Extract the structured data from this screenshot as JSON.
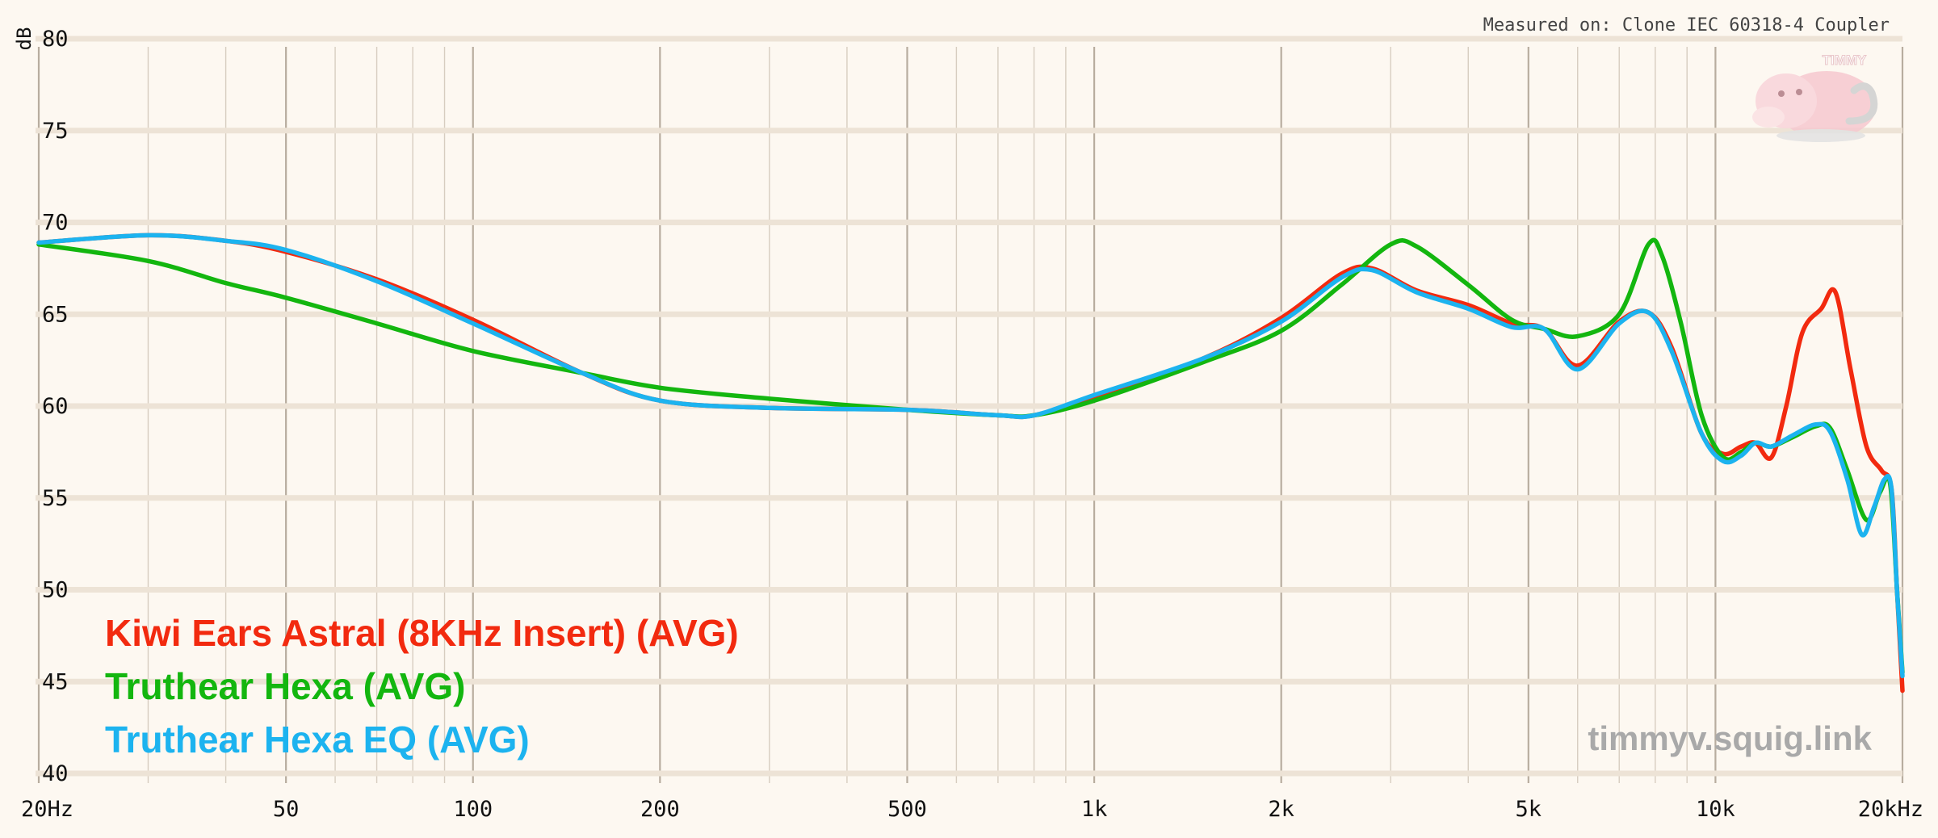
{
  "chart_data": {
    "type": "line",
    "title": "",
    "ylabel": "dB",
    "xlabel": "",
    "x_scale": "log",
    "xlim": [
      20,
      20000
    ],
    "ylim": [
      40,
      80
    ],
    "grid": true,
    "legend_position": "bottom-left",
    "y_ticks": [
      40,
      45,
      50,
      55,
      60,
      65,
      70,
      75,
      80
    ],
    "x_ticks": [
      {
        "value": 20,
        "label": "20Hz"
      },
      {
        "value": 50,
        "label": "50"
      },
      {
        "value": 100,
        "label": "100"
      },
      {
        "value": 200,
        "label": "200"
      },
      {
        "value": 500,
        "label": "500"
      },
      {
        "value": 1000,
        "label": "1k"
      },
      {
        "value": 2000,
        "label": "2k"
      },
      {
        "value": 5000,
        "label": "5k"
      },
      {
        "value": 10000,
        "label": "10k"
      },
      {
        "value": 20000,
        "label": "20kHz"
      }
    ],
    "series": [
      {
        "name": "Kiwi Ears Astral (8KHz Insert) (AVG)",
        "color": "#f22a0f",
        "points": [
          [
            20,
            68.9
          ],
          [
            30,
            69.3
          ],
          [
            40,
            69.0
          ],
          [
            50,
            68.4
          ],
          [
            70,
            66.9
          ],
          [
            100,
            64.7
          ],
          [
            150,
            61.8
          ],
          [
            200,
            60.3
          ],
          [
            300,
            59.9
          ],
          [
            500,
            59.8
          ],
          [
            700,
            59.5
          ],
          [
            800,
            59.5
          ],
          [
            1000,
            60.5
          ],
          [
            1500,
            62.6
          ],
          [
            2000,
            64.8
          ],
          [
            2500,
            67.2
          ],
          [
            2800,
            67.5
          ],
          [
            3300,
            66.3
          ],
          [
            4000,
            65.5
          ],
          [
            4700,
            64.5
          ],
          [
            5300,
            64.2
          ],
          [
            6000,
            62.2
          ],
          [
            7000,
            64.6
          ],
          [
            7800,
            65.1
          ],
          [
            8500,
            63.2
          ],
          [
            9500,
            58.5
          ],
          [
            10300,
            57.4
          ],
          [
            11000,
            57.8
          ],
          [
            11600,
            58.0
          ],
          [
            12300,
            57.2
          ],
          [
            13000,
            60.0
          ],
          [
            13800,
            64.0
          ],
          [
            14800,
            65.3
          ],
          [
            15600,
            66.2
          ],
          [
            16500,
            62.0
          ],
          [
            17500,
            57.8
          ],
          [
            18500,
            56.5
          ],
          [
            19200,
            55.5
          ],
          [
            19600,
            50.0
          ],
          [
            20000,
            44.5
          ]
        ]
      },
      {
        "name": "Truthear Hexa (AVG)",
        "color": "#13b60f",
        "points": [
          [
            20,
            68.8
          ],
          [
            30,
            67.9
          ],
          [
            40,
            66.7
          ],
          [
            50,
            65.9
          ],
          [
            70,
            64.5
          ],
          [
            100,
            63.0
          ],
          [
            150,
            61.8
          ],
          [
            200,
            61.0
          ],
          [
            300,
            60.4
          ],
          [
            500,
            59.8
          ],
          [
            700,
            59.5
          ],
          [
            800,
            59.5
          ],
          [
            1000,
            60.3
          ],
          [
            1500,
            62.4
          ],
          [
            2000,
            64.1
          ],
          [
            2500,
            66.6
          ],
          [
            3000,
            68.8
          ],
          [
            3300,
            68.7
          ],
          [
            4000,
            66.6
          ],
          [
            4700,
            64.7
          ],
          [
            5300,
            64.2
          ],
          [
            6000,
            63.8
          ],
          [
            7000,
            65.0
          ],
          [
            7800,
            68.8
          ],
          [
            8200,
            68.2
          ],
          [
            8800,
            64.5
          ],
          [
            9500,
            59.5
          ],
          [
            10300,
            57.2
          ],
          [
            11000,
            57.5
          ],
          [
            11600,
            58.0
          ],
          [
            12300,
            57.8
          ],
          [
            13300,
            58.3
          ],
          [
            14500,
            58.9
          ],
          [
            15300,
            58.8
          ],
          [
            16300,
            56.5
          ],
          [
            17500,
            53.8
          ],
          [
            18400,
            55.3
          ],
          [
            19100,
            55.8
          ],
          [
            19600,
            50.0
          ],
          [
            20000,
            45.5
          ]
        ]
      },
      {
        "name": "Truthear Hexa EQ (AVG)",
        "color": "#1cb3ef",
        "points": [
          [
            20,
            68.9
          ],
          [
            30,
            69.3
          ],
          [
            40,
            69.0
          ],
          [
            50,
            68.5
          ],
          [
            70,
            66.8
          ],
          [
            100,
            64.5
          ],
          [
            150,
            61.8
          ],
          [
            200,
            60.3
          ],
          [
            300,
            59.9
          ],
          [
            500,
            59.8
          ],
          [
            700,
            59.5
          ],
          [
            800,
            59.5
          ],
          [
            1000,
            60.6
          ],
          [
            1500,
            62.6
          ],
          [
            2000,
            64.6
          ],
          [
            2500,
            67.0
          ],
          [
            2800,
            67.4
          ],
          [
            3300,
            66.2
          ],
          [
            4000,
            65.3
          ],
          [
            4700,
            64.3
          ],
          [
            5300,
            64.2
          ],
          [
            6000,
            62.0
          ],
          [
            7000,
            64.5
          ],
          [
            7800,
            65.1
          ],
          [
            8500,
            63.0
          ],
          [
            9500,
            58.5
          ],
          [
            10300,
            57.0
          ],
          [
            11000,
            57.3
          ],
          [
            11600,
            58.0
          ],
          [
            12300,
            57.8
          ],
          [
            13300,
            58.4
          ],
          [
            14500,
            59.0
          ],
          [
            15300,
            58.6
          ],
          [
            16300,
            56.0
          ],
          [
            17200,
            53.0
          ],
          [
            18000,
            54.5
          ],
          [
            18700,
            56.0
          ],
          [
            19200,
            55.5
          ],
          [
            19600,
            50.0
          ],
          [
            20000,
            45.3
          ]
        ]
      }
    ]
  },
  "measured_on": "Measured on: Clone IEC 60318-4 Coupler",
  "watermark": "timmyv.squig.link",
  "logo_text": "TIMMY"
}
